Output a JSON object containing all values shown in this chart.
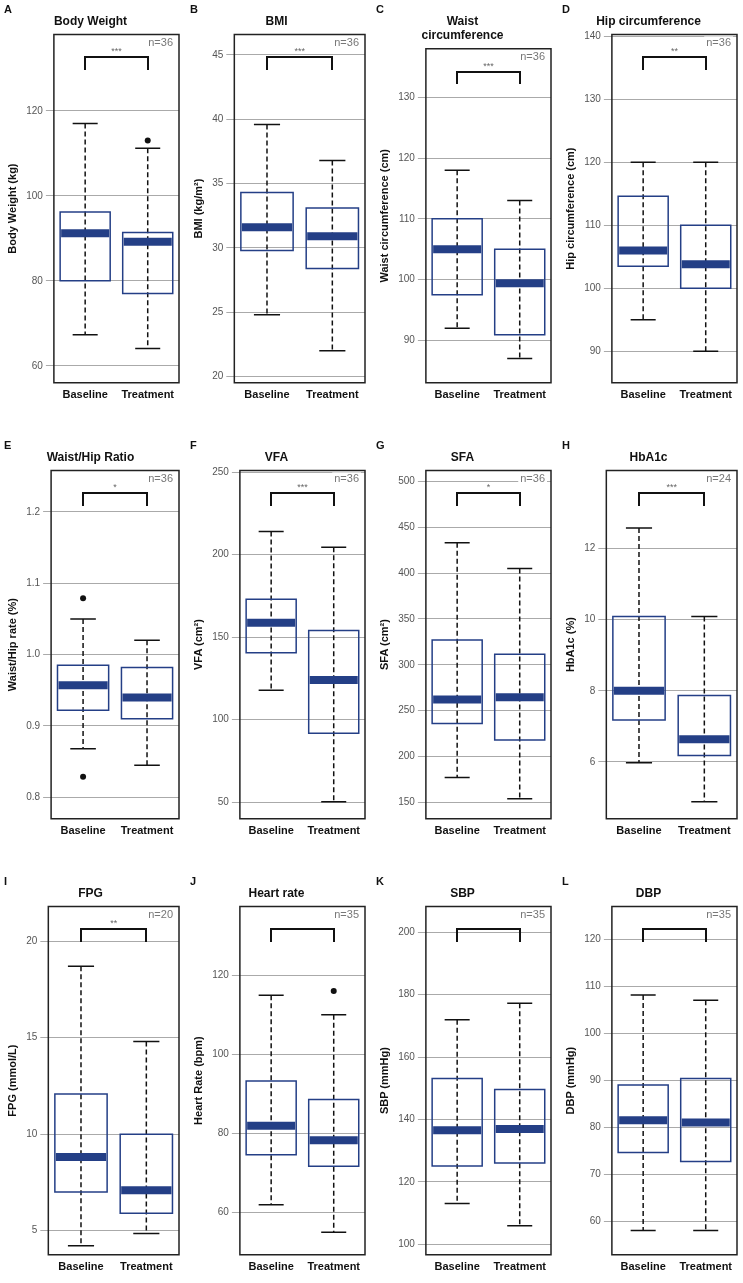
{
  "chart_data": [
    {
      "type": "box",
      "title": "Body Weight",
      "ylabel": "Body Weight (kg)",
      "categories": [
        "Baseline",
        "Treatment"
      ],
      "ylim": [
        56,
        138
      ],
      "yticks": [
        60,
        80,
        100,
        120
      ],
      "grid": "y",
      "annotations": [
        "A",
        "n=36",
        "***"
      ],
      "series": [
        {
          "color": "#243f86",
          "boxes": [
            {
              "low": 67.3,
              "q1": 80,
              "median": 91.2,
              "q3": 96.2,
              "high": 117
            },
            {
              "low": 64.1,
              "q1": 77,
              "median": 89.2,
              "q3": 91.4,
              "high": 111.2,
              "outliers": [
                113
              ]
            }
          ]
        }
      ]
    },
    {
      "type": "box",
      "title": "BMI",
      "ylabel": "BMI (kg/m²)",
      "categories": [
        "Baseline",
        "Treatment"
      ],
      "ylim": [
        19.5,
        46.6
      ],
      "yticks": [
        20,
        25,
        30,
        35,
        40,
        45
      ],
      "grid": "y",
      "annotations": [
        "B",
        "n=36",
        "***"
      ],
      "series": [
        {
          "color": "#243f86",
          "boxes": [
            {
              "low": 24.8,
              "q1": 29.8,
              "median": 31.6,
              "q3": 34.3,
              "high": 39.6
            },
            {
              "low": 22,
              "q1": 28.4,
              "median": 30.9,
              "q3": 33.1,
              "high": 36.8
            }
          ]
        }
      ]
    },
    {
      "type": "box",
      "title": "Waist circumference",
      "ylabel": "Waist circumference (cm)",
      "categories": [
        "Baseline",
        "Treatment"
      ],
      "ylim": [
        83,
        138
      ],
      "yticks": [
        90,
        100,
        110,
        120,
        130
      ],
      "grid": "y",
      "annotations": [
        "C",
        "n=36",
        "***"
      ],
      "series": [
        {
          "color": "#243f86",
          "boxes": [
            {
              "low": 92,
              "q1": 97.5,
              "median": 105,
              "q3": 110,
              "high": 118
            },
            {
              "low": 87,
              "q1": 90.9,
              "median": 99.4,
              "q3": 105,
              "high": 113
            }
          ]
        }
      ]
    },
    {
      "type": "box",
      "title": "Hip circumference",
      "ylabel": "Hip circumference (cm)",
      "categories": [
        "Baseline",
        "Treatment"
      ],
      "ylim": [
        85,
        140.3
      ],
      "yticks": [
        90,
        100,
        110,
        120,
        130,
        140
      ],
      "grid": "y",
      "annotations": [
        "D",
        "n=36",
        "**"
      ],
      "series": [
        {
          "color": "#243f86",
          "boxes": [
            {
              "low": 95,
              "q1": 103.5,
              "median": 106,
              "q3": 114.6,
              "high": 120
            },
            {
              "low": 90,
              "q1": 100,
              "median": 103.8,
              "q3": 110,
              "high": 120
            }
          ]
        }
      ]
    },
    {
      "type": "box",
      "title": "Waist/Hip Ratio",
      "ylabel": "Waist/Hip rate (%)",
      "categories": [
        "Baseline",
        "Treatment"
      ],
      "ylim": [
        0.77,
        1.258
      ],
      "yticks": [
        {
          "value": 0.8,
          "label": "0.8"
        },
        {
          "value": 0.9,
          "label": "0.9"
        },
        {
          "value": 1,
          "label": "1.0"
        },
        {
          "value": 1.1,
          "label": "1.1"
        },
        {
          "value": 1.2,
          "label": "1.2"
        }
      ],
      "grid": "y",
      "annotations": [
        "E",
        "n=36",
        "*"
      ],
      "series": [
        {
          "color": "#243f86",
          "boxes": [
            {
              "low": 0.868,
              "q1": 0.922,
              "median": 0.957,
              "q3": 0.985,
              "high": 1.05,
              "outliers": [
                1.079,
                0.829
              ]
            },
            {
              "low": 0.845,
              "q1": 0.91,
              "median": 0.94,
              "q3": 0.982,
              "high": 1.02
            }
          ]
        }
      ]
    },
    {
      "type": "box",
      "title": "VFA",
      "ylabel": "VFA (cm²)",
      "categories": [
        "Baseline",
        "Treatment"
      ],
      "ylim": [
        40,
        251
      ],
      "yticks": [
        50,
        100,
        150,
        200,
        250
      ],
      "grid": "y",
      "annotations": [
        "F",
        "n=36",
        "***"
      ],
      "series": [
        {
          "color": "#243f86",
          "boxes": [
            {
              "low": 117.8,
              "q1": 140.6,
              "median": 158.8,
              "q3": 173,
              "high": 214
            },
            {
              "low": 50.4,
              "q1": 91.8,
              "median": 124.1,
              "q3": 154,
              "high": 204.4
            }
          ]
        }
      ]
    },
    {
      "type": "box",
      "title": "SFA",
      "ylabel": "SFA (cm²)",
      "categories": [
        "Baseline",
        "Treatment"
      ],
      "ylim": [
        132,
        512
      ],
      "yticks": [
        150,
        200,
        250,
        300,
        350,
        400,
        450,
        500
      ],
      "grid": "y",
      "annotations": [
        "G",
        "n=36",
        "*"
      ],
      "series": [
        {
          "color": "#243f86",
          "boxes": [
            {
              "low": 177,
              "q1": 236,
              "median": 262,
              "q3": 327,
              "high": 433
            },
            {
              "low": 154,
              "q1": 218,
              "median": 264.5,
              "q3": 311.5,
              "high": 405
            }
          ]
        }
      ]
    },
    {
      "type": "box",
      "title": "HbA1c",
      "ylabel": "HbA1c (%)",
      "categories": [
        "Baseline",
        "Treatment"
      ],
      "ylim": [
        4.4,
        14.2
      ],
      "yticks": [
        6,
        8,
        10,
        12
      ],
      "grid": "y",
      "annotations": [
        "H",
        "n=24",
        "***"
      ],
      "series": [
        {
          "color": "#243f86",
          "boxes": [
            {
              "low": 5.98,
              "q1": 7.18,
              "median": 8,
              "q3": 10.09,
              "high": 12.58
            },
            {
              "low": 4.88,
              "q1": 6.18,
              "median": 6.64,
              "q3": 7.87,
              "high": 10.09
            }
          ]
        }
      ]
    },
    {
      "type": "box",
      "title": "FPG",
      "ylabel": "FPG (mmol/L)",
      "categories": [
        "Baseline",
        "Treatment"
      ],
      "ylim": [
        3.75,
        21.8
      ],
      "yticks": [
        5,
        10,
        15,
        20
      ],
      "grid": "y",
      "annotations": [
        "I",
        "n=20",
        "**"
      ],
      "series": [
        {
          "color": "#243f86",
          "boxes": [
            {
              "low": 4.22,
              "q1": 7,
              "median": 8.82,
              "q3": 12.08,
              "high": 18.7
            },
            {
              "low": 4.86,
              "q1": 5.9,
              "median": 7.1,
              "q3": 10,
              "high": 14.8
            }
          ]
        }
      ]
    },
    {
      "type": "box",
      "title": "Heart rate",
      "ylabel": "Heart Rate (bpm)",
      "categories": [
        "Baseline",
        "Treatment"
      ],
      "ylim": [
        49.2,
        137.4
      ],
      "yticks": [
        60,
        80,
        100,
        120
      ],
      "grid": "y",
      "annotations": [
        "J",
        "n=35"
      ],
      "series": [
        {
          "color": "#243f86",
          "boxes": [
            {
              "low": 61.9,
              "q1": 74.5,
              "median": 81.9,
              "q3": 93.2,
              "high": 114.9
            },
            {
              "low": 54.9,
              "q1": 71.6,
              "median": 78.2,
              "q3": 88.5,
              "high": 110,
              "outliers": [
                116
              ]
            }
          ]
        }
      ]
    },
    {
      "type": "box",
      "title": "SBP",
      "ylabel": "SBP (mmHg)",
      "categories": [
        "Baseline",
        "Treatment"
      ],
      "ylim": [
        96.7,
        208.2
      ],
      "yticks": [
        100,
        120,
        140,
        160,
        180,
        200
      ],
      "grid": "y",
      "annotations": [
        "K",
        "n=35"
      ],
      "series": [
        {
          "color": "#243f86",
          "boxes": [
            {
              "low": 113.1,
              "q1": 125.1,
              "median": 136.6,
              "q3": 153.1,
              "high": 171.9
            },
            {
              "low": 106,
              "q1": 126.1,
              "median": 137,
              "q3": 149.6,
              "high": 177.2
            }
          ]
        }
      ]
    },
    {
      "type": "box",
      "title": "DBP",
      "ylabel": "DBP (mmHg)",
      "categories": [
        "Baseline",
        "Treatment"
      ],
      "ylim": [
        52.8,
        127.1
      ],
      "yticks": [
        60,
        70,
        80,
        90,
        100,
        110,
        120
      ],
      "grid": "y",
      "annotations": [
        "L",
        "n=35"
      ],
      "series": [
        {
          "color": "#243f86",
          "boxes": [
            {
              "low": 58,
              "q1": 74.6,
              "median": 81.5,
              "q3": 89,
              "high": 108.2
            },
            {
              "low": 58,
              "q1": 72.7,
              "median": 81,
              "q3": 90.4,
              "high": 107.1
            }
          ]
        }
      ]
    }
  ]
}
